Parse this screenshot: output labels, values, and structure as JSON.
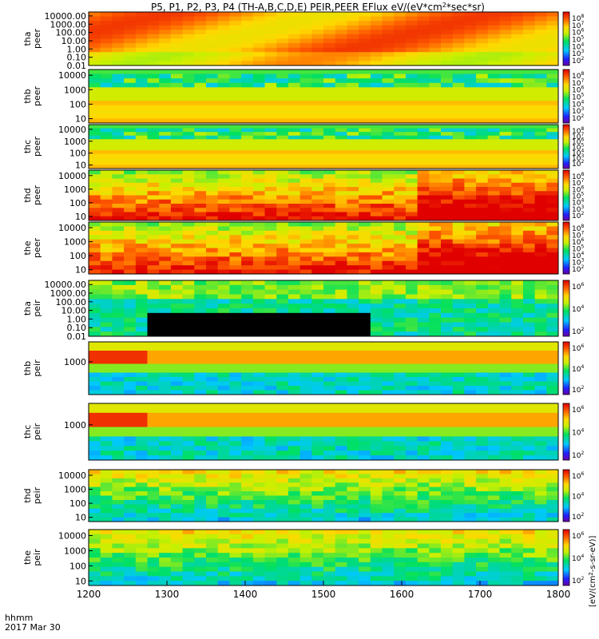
{
  "chart_data": {
    "type": "heatmap",
    "title": "P5, P1, P2, P3, P4 (TH-A,B,C,D,E) PEIR,PEER EFlux eV/(eV*cm",
    "title_sup": "2",
    "title_tail": "*sec*sr)",
    "x_axis": {
      "ticks": [
        1200,
        1300,
        1400,
        1500,
        1600,
        1700,
        1800
      ],
      "range": [
        1200,
        1800
      ],
      "label_line1": "hhmm",
      "label_line2": "2017 Mar 30"
    },
    "colorbar_label": "[eV/(cm^2-s-sr-eV)]",
    "colorbar_label_parts": [
      "eV/(cm",
      "2",
      "-s-sr-eV)"
    ],
    "colorbar_ticks_electron": [
      "10",
      "10",
      "10",
      "10",
      "10",
      "10",
      "10"
    ],
    "colorbar_exps_electron": [
      "8",
      "7",
      "6",
      "5",
      "4",
      "3",
      "2"
    ],
    "colorbar_ticks_ion": [
      "10",
      "10",
      "10"
    ],
    "colorbar_exps_ion": [
      "6",
      "4",
      "2"
    ],
    "panels": [
      {
        "probe": "tha",
        "species": "peer",
        "y_ticks": [
          "10000.00",
          "1000.00",
          "100.00",
          "10.00",
          "1.00",
          "0.10",
          "0.01"
        ],
        "y_range": [
          0.01,
          30000
        ],
        "log": true
      },
      {
        "probe": "thb",
        "species": "peer",
        "y_ticks": [
          "10000",
          "1000",
          "100",
          "10"
        ],
        "y_range": [
          5,
          25000
        ],
        "log": true
      },
      {
        "probe": "thc",
        "species": "peer",
        "y_ticks": [
          "10000",
          "1000",
          "100",
          "10"
        ],
        "y_range": [
          5,
          25000
        ],
        "log": true
      },
      {
        "probe": "thd",
        "species": "peer",
        "y_ticks": [
          "10000",
          "1000",
          "100",
          "10"
        ],
        "y_range": [
          5,
          25000
        ],
        "log": true
      },
      {
        "probe": "the",
        "species": "peer",
        "y_ticks": [
          "10000",
          "1000",
          "100",
          "10"
        ],
        "y_range": [
          5,
          25000
        ],
        "log": true
      },
      {
        "probe": "tha",
        "species": "peir",
        "y_ticks": [
          "10000.00",
          "1000.00",
          "100.00",
          "10.00",
          "1.00",
          "0.10",
          "0.01"
        ],
        "y_range": [
          0.01,
          30000
        ],
        "log": true
      },
      {
        "probe": "thb",
        "species": "peir",
        "y_ticks": [
          "1000"
        ],
        "y_range": [
          5,
          25000
        ],
        "log": true
      },
      {
        "probe": "thc",
        "species": "peir",
        "y_ticks": [
          "1000"
        ],
        "y_range": [
          5,
          25000
        ],
        "log": true
      },
      {
        "probe": "thd",
        "species": "peir",
        "y_ticks": [
          "10000",
          "1000",
          "100",
          "10"
        ],
        "y_range": [
          5,
          25000
        ],
        "log": true
      },
      {
        "probe": "the",
        "species": "peir",
        "y_ticks": [
          "10000",
          "1000",
          "100",
          "10"
        ],
        "y_range": [
          5,
          25000
        ],
        "log": true
      }
    ]
  }
}
